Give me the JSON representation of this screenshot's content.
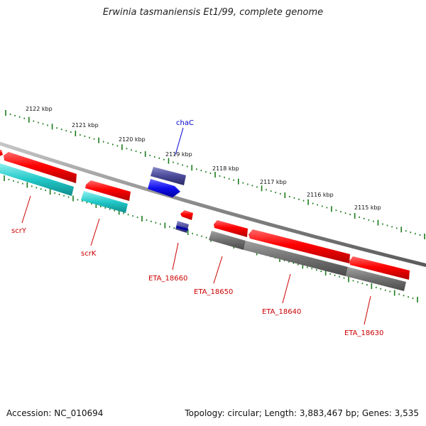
{
  "title": "Erwinia tasmaniensis Et1/99, complete genome",
  "footer": {
    "accession": "Accession: NC_010694",
    "summary": "Topology: circular; Length: 3,883,467 bp; Genes: 3,535"
  },
  "colors": {
    "backbone": "#8a8a8a",
    "tick": "#1a7a1a",
    "forward_gene": "#ff0000",
    "cds_reverse": "#22c8c8",
    "cds_other": "#7a7a7a",
    "blue_gene": "#1010ee",
    "dark_blue_gene": "#4a4a99",
    "label_red": "#cc0000",
    "label_blue": "#0000cc"
  },
  "scale_ticks": [
    "2122 kbp",
    "2121 kbp",
    "2120 kbp",
    "2119 kbp",
    "2118 kbp",
    "2117 kbp",
    "2116 kbp",
    "2115 kbp"
  ],
  "gene_labels": [
    {
      "name": "chaC",
      "color": "label_blue"
    },
    {
      "name": "scrY",
      "color": "label_red"
    },
    {
      "name": "scrK",
      "color": "label_red"
    },
    {
      "name": "ETA_18660",
      "color": "label_red"
    },
    {
      "name": "ETA_18650",
      "color": "label_red"
    },
    {
      "name": "ETA_18640",
      "color": "label_red"
    },
    {
      "name": "ETA_18630",
      "color": "label_red"
    }
  ]
}
